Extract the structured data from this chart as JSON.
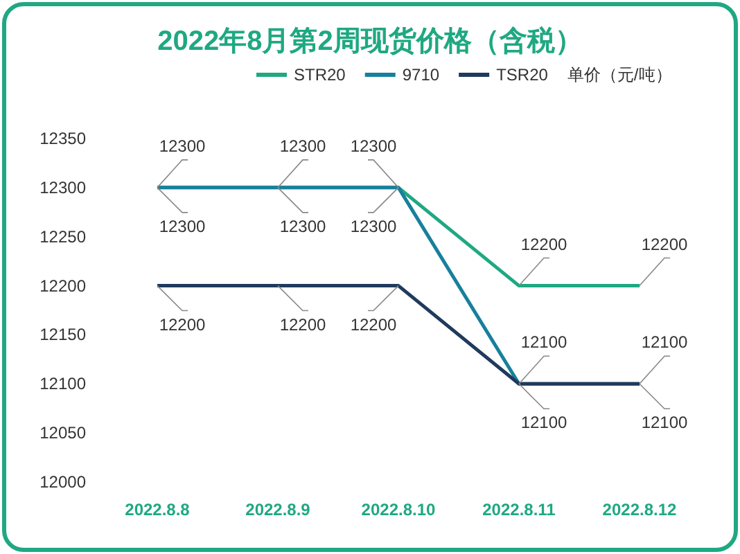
{
  "chart_data": {
    "type": "line",
    "title": "2022年8月第2周现货价格（含税）",
    "ylabel": "单价（元/吨）",
    "categories": [
      "2022.8.8",
      "2022.8.9",
      "2022.8.10",
      "2022.8.11",
      "2022.8.12"
    ],
    "series": [
      {
        "name": "STR20",
        "color": "#1fa882",
        "values": [
          12300,
          12300,
          12300,
          12200,
          12200
        ]
      },
      {
        "name": "9710",
        "color": "#17809c",
        "values": [
          12300,
          12300,
          12300,
          12100,
          12100
        ]
      },
      {
        "name": "TSR20",
        "color": "#1f3a5c",
        "values": [
          12200,
          12200,
          12200,
          12100,
          12100
        ]
      }
    ],
    "ylim": [
      12000,
      12350
    ],
    "yticks": [
      12000,
      12050,
      12100,
      12150,
      12200,
      12250,
      12300,
      12350
    ],
    "data_labels": true,
    "legend": "top",
    "grid": false,
    "marker": "none",
    "line_style": "solid"
  }
}
